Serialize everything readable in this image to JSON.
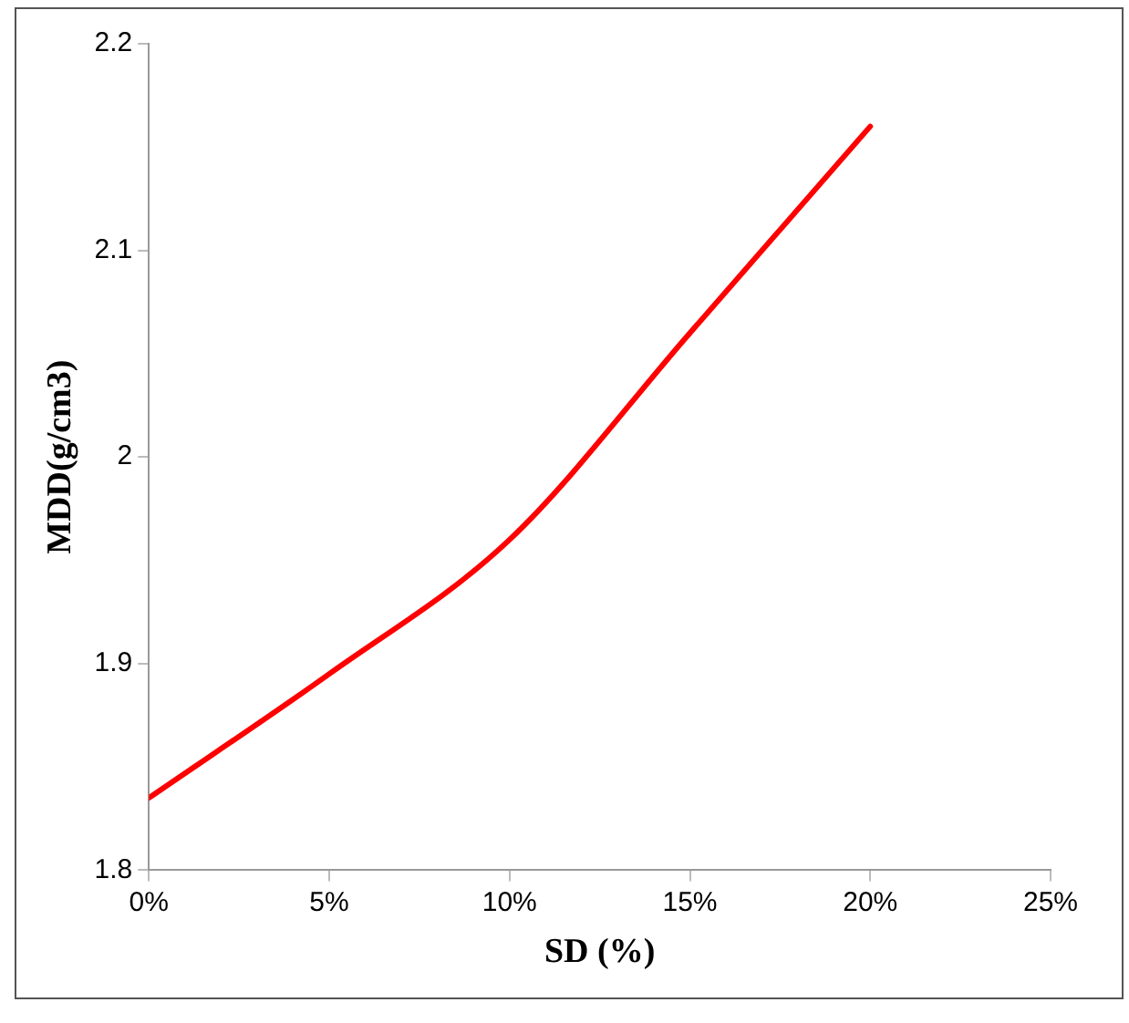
{
  "chart_data": {
    "type": "line",
    "xlabel": "SD (%)",
    "ylabel": "MDD(g/cm3)",
    "x": [
      0,
      5,
      10,
      15,
      20
    ],
    "series": [
      {
        "color": "#ff0000",
        "values": [
          1.835,
          1.895,
          1.96,
          2.06,
          2.16
        ]
      }
    ],
    "xlim": [
      0,
      25
    ],
    "xticks": [
      {
        "value": 0,
        "label": "0%"
      },
      {
        "value": 5,
        "label": "5%"
      },
      {
        "value": 10,
        "label": "10%"
      },
      {
        "value": 15,
        "label": "15%"
      },
      {
        "value": 20,
        "label": "20%"
      },
      {
        "value": 25,
        "label": "25%"
      }
    ],
    "ylim": [
      1.8,
      2.2
    ],
    "yticks": [
      1.8,
      1.9,
      2,
      2.1,
      2.2
    ],
    "grid": false,
    "legend": false,
    "marker": "none",
    "line_style": "solid"
  }
}
